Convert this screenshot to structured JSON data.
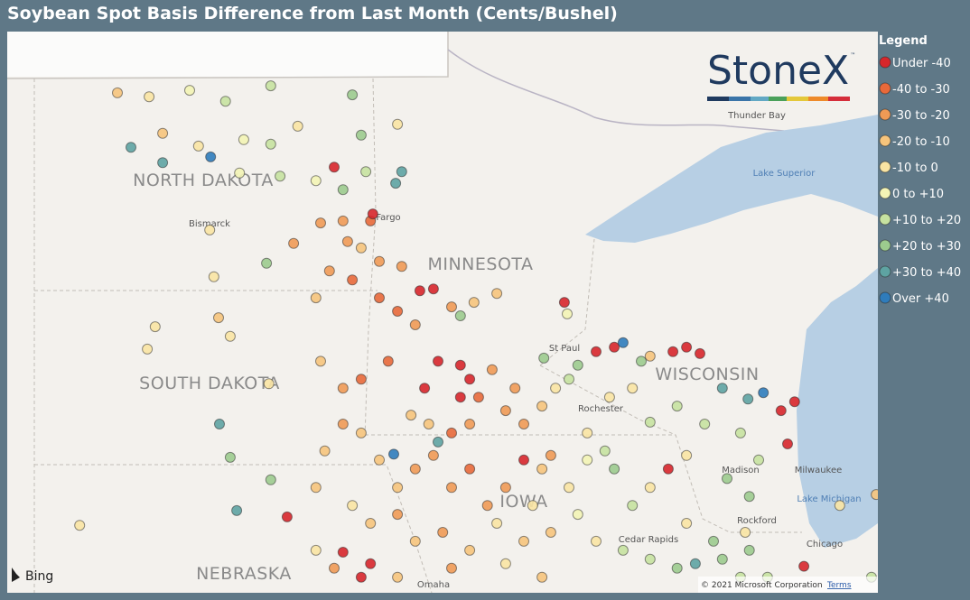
{
  "header": {
    "title": "Soybean Spot Basis Difference from Last Month (Cents/Bushel)"
  },
  "legend": {
    "title": "Legend",
    "items": [
      {
        "label": "Under -40",
        "color": "#d7262b"
      },
      {
        "label": "-40 to -30",
        "color": "#e8693a"
      },
      {
        "label": "-30 to -20",
        "color": "#f09a55"
      },
      {
        "label": "-20 to -10",
        "color": "#f6c47c"
      },
      {
        "label": "-10 to 0",
        "color": "#f9e4a3"
      },
      {
        "label": "0 to +10",
        "color": "#f3f4b5"
      },
      {
        "label": "+10 to +20",
        "color": "#c6e2a0"
      },
      {
        "label": "+20 to +30",
        "color": "#9ccb8e"
      },
      {
        "label": "+30 to +40",
        "color": "#5ea3a2"
      },
      {
        "label": "Over +40",
        "color": "#2f7cbb"
      }
    ]
  },
  "logo": "StoneX",
  "map": {
    "states": [
      "NORTH DAKOTA",
      "MINNESOTA",
      "SOUTH DAKOTA",
      "WISCONSIN",
      "NEBRASKA",
      "IOWA"
    ],
    "places": [
      "Bismarck",
      "Fargo",
      "St Paul",
      "Rochester",
      "Madison",
      "Milwaukee",
      "Chicago",
      "Rockford",
      "Cedar Rapids",
      "Omaha",
      "Thunder Bay"
    ],
    "waters": [
      "Lake Superior",
      "Lake Michigan"
    ]
  },
  "attribution": {
    "bing": "Bing",
    "copyright": "© 2021 Microsoft Corporation",
    "terms": "Terms"
  },
  "points": [
    [
      -102.27,
      48.88,
      3
    ],
    [
      -101.59,
      48.82,
      4
    ],
    [
      -100.72,
      48.92,
      5
    ],
    [
      -99.95,
      48.75,
      6
    ],
    [
      -98.98,
      48.99,
      6
    ],
    [
      -101.3,
      48.25,
      3
    ],
    [
      -100.53,
      48.05,
      4
    ],
    [
      -101.98,
      48.03,
      8
    ],
    [
      -101.3,
      47.79,
      8
    ],
    [
      -100.27,
      47.88,
      9
    ],
    [
      -99.56,
      48.15,
      5
    ],
    [
      -98.98,
      48.08,
      6
    ],
    [
      -98.4,
      48.36,
      4
    ],
    [
      -98.78,
      47.58,
      6
    ],
    [
      -99.65,
      47.63,
      5
    ],
    [
      -98.01,
      47.51,
      5
    ],
    [
      -97.43,
      47.37,
      7
    ],
    [
      -96.94,
      47.65,
      6
    ],
    [
      -97.04,
      48.22,
      7
    ],
    [
      -97.23,
      48.85,
      7
    ],
    [
      -96.26,
      48.39,
      4
    ],
    [
      -96.17,
      47.65,
      8
    ],
    [
      -96.3,
      47.47,
      8
    ],
    [
      -97.62,
      47.72,
      0
    ],
    [
      -100.29,
      46.74,
      4
    ],
    [
      -100.2,
      46.01,
      4
    ],
    [
      -100.1,
      45.37,
      3
    ],
    [
      -101.46,
      45.23,
      4
    ],
    [
      -101.63,
      44.88,
      4
    ],
    [
      -99.85,
      45.08,
      4
    ],
    [
      -99.02,
      44.34,
      4
    ],
    [
      -100.08,
      43.71,
      8
    ],
    [
      -99.85,
      43.19,
      7
    ],
    [
      -98.98,
      42.84,
      7
    ],
    [
      -99.71,
      42.36,
      8
    ],
    [
      -98.63,
      42.26,
      0
    ],
    [
      -103.08,
      42.13,
      4
    ],
    [
      -98.49,
      46.53,
      2
    ],
    [
      -99.07,
      46.22,
      7
    ],
    [
      -97.91,
      46.85,
      2
    ],
    [
      -97.43,
      46.88,
      2
    ],
    [
      -96.84,
      46.88,
      1
    ],
    [
      -96.79,
      46.99,
      0
    ],
    [
      -97.33,
      46.56,
      2
    ],
    [
      -97.04,
      46.46,
      3
    ],
    [
      -96.65,
      46.25,
      2
    ],
    [
      -96.17,
      46.17,
      2
    ],
    [
      -97.23,
      45.96,
      1
    ],
    [
      -96.65,
      45.68,
      1
    ],
    [
      -96.26,
      45.47,
      1
    ],
    [
      -95.78,
      45.79,
      0
    ],
    [
      -95.49,
      45.82,
      0
    ],
    [
      -95.88,
      45.26,
      2
    ],
    [
      -95.1,
      45.54,
      2
    ],
    [
      -94.62,
      45.61,
      3
    ],
    [
      -94.13,
      45.75,
      3
    ],
    [
      -94.91,
      45.4,
      7
    ],
    [
      -97.72,
      46.1,
      2
    ],
    [
      -98.01,
      45.68,
      3
    ],
    [
      -97.91,
      44.69,
      3
    ],
    [
      -97.43,
      44.27,
      2
    ],
    [
      -97.04,
      44.41,
      1
    ],
    [
      -96.46,
      44.69,
      1
    ],
    [
      -95.39,
      44.69,
      0
    ],
    [
      -94.91,
      44.63,
      0
    ],
    [
      -94.71,
      44.41,
      0
    ],
    [
      -94.52,
      44.13,
      1
    ],
    [
      -94.91,
      44.13,
      0
    ],
    [
      -94.23,
      44.56,
      2
    ],
    [
      -95.68,
      44.27,
      0
    ],
    [
      -95.97,
      43.85,
      3
    ],
    [
      -95.59,
      43.71,
      3
    ],
    [
      -95.1,
      43.57,
      1
    ],
    [
      -94.71,
      43.71,
      2
    ],
    [
      -93.94,
      43.92,
      2
    ],
    [
      -93.55,
      43.71,
      2
    ],
    [
      -93.16,
      43.99,
      3
    ],
    [
      -92.87,
      44.27,
      4
    ],
    [
      -92.58,
      44.41,
      6
    ],
    [
      -92.39,
      44.63,
      7
    ],
    [
      -92.0,
      44.84,
      0
    ],
    [
      -91.61,
      44.91,
      0
    ],
    [
      -91.42,
      44.98,
      9
    ],
    [
      -91.03,
      44.69,
      7
    ],
    [
      -90.84,
      44.77,
      3
    ],
    [
      -90.35,
      44.84,
      0
    ],
    [
      -90.06,
      44.91,
      0
    ],
    [
      -89.77,
      44.81,
      0
    ],
    [
      -89.29,
      44.27,
      8
    ],
    [
      -88.74,
      44.1,
      8
    ],
    [
      -88.41,
      44.2,
      9
    ],
    [
      -88.03,
      43.92,
      0
    ],
    [
      -87.74,
      44.06,
      0
    ],
    [
      -87.89,
      43.4,
      0
    ],
    [
      -89.67,
      43.71,
      6
    ],
    [
      -88.9,
      43.57,
      6
    ],
    [
      -88.51,
      43.15,
      6
    ],
    [
      -89.19,
      42.86,
      7
    ],
    [
      -88.71,
      42.58,
      7
    ],
    [
      -90.06,
      43.22,
      4
    ],
    [
      -90.45,
      43.01,
      0
    ],
    [
      -90.84,
      42.72,
      4
    ],
    [
      -91.22,
      42.44,
      6
    ],
    [
      -91.61,
      43.01,
      7
    ],
    [
      -91.81,
      43.29,
      6
    ],
    [
      -92.19,
      43.15,
      5
    ],
    [
      -92.58,
      42.72,
      4
    ],
    [
      -93.16,
      43.01,
      3
    ],
    [
      -93.55,
      43.15,
      0
    ],
    [
      -93.94,
      42.72,
      2
    ],
    [
      -94.33,
      42.44,
      2
    ],
    [
      -94.71,
      43.01,
      1
    ],
    [
      -95.1,
      42.72,
      2
    ],
    [
      -95.49,
      43.22,
      2
    ],
    [
      -95.88,
      43.01,
      2
    ],
    [
      -96.26,
      42.72,
      3
    ],
    [
      -96.65,
      43.15,
      3
    ],
    [
      -96.34,
      43.24,
      9
    ],
    [
      -97.04,
      43.57,
      3
    ],
    [
      -97.43,
      43.71,
      2
    ],
    [
      -97.82,
      43.29,
      3
    ],
    [
      -98.01,
      42.72,
      3
    ],
    [
      -97.23,
      42.44,
      4
    ],
    [
      -96.84,
      42.16,
      3
    ],
    [
      -96.26,
      42.3,
      2
    ],
    [
      -95.88,
      41.88,
      3
    ],
    [
      -95.29,
      42.02,
      2
    ],
    [
      -94.71,
      41.74,
      3
    ],
    [
      -94.13,
      42.16,
      4
    ],
    [
      -93.55,
      41.88,
      3
    ],
    [
      -92.97,
      42.02,
      3
    ],
    [
      -92.39,
      42.3,
      5
    ],
    [
      -92.0,
      41.88,
      4
    ],
    [
      -91.42,
      41.74,
      6
    ],
    [
      -90.84,
      41.6,
      6
    ],
    [
      -90.26,
      41.46,
      7
    ],
    [
      -89.87,
      41.53,
      8
    ],
    [
      -89.29,
      41.6,
      7
    ],
    [
      -88.9,
      41.32,
      6
    ],
    [
      -88.32,
      41.32,
      6
    ],
    [
      -87.54,
      41.49,
      0
    ],
    [
      -86.09,
      41.32,
      6
    ],
    [
      -85.99,
      42.61,
      3
    ],
    [
      -86.77,
      42.44,
      4
    ],
    [
      -98.01,
      41.74,
      4
    ],
    [
      -97.43,
      41.71,
      0
    ],
    [
      -96.84,
      41.53,
      0
    ],
    [
      -97.04,
      41.32,
      0
    ],
    [
      -97.62,
      41.46,
      2
    ],
    [
      -96.26,
      41.32,
      3
    ],
    [
      -95.1,
      41.46,
      2
    ],
    [
      -93.94,
      41.53,
      4
    ],
    [
      -93.16,
      41.32,
      3
    ],
    [
      -92.68,
      45.61,
      0
    ],
    [
      -92.62,
      45.43,
      5
    ],
    [
      -93.12,
      44.74,
      7
    ],
    [
      -90.26,
      43.99,
      6
    ],
    [
      -90.84,
      43.74,
      6
    ],
    [
      -95.39,
      43.43,
      8
    ],
    [
      -93.74,
      44.27,
      2
    ],
    [
      -93.36,
      42.44,
      4
    ],
    [
      -92.97,
      43.22,
      2
    ],
    [
      -92.19,
      43.57,
      4
    ],
    [
      -91.71,
      44.13,
      4
    ],
    [
      -91.22,
      44.27,
      4
    ],
    [
      -90.06,
      42.16,
      4
    ],
    [
      -89.48,
      41.88,
      7
    ],
    [
      -88.8,
      42.02,
      4
    ],
    [
      -88.71,
      41.74,
      7
    ]
  ]
}
